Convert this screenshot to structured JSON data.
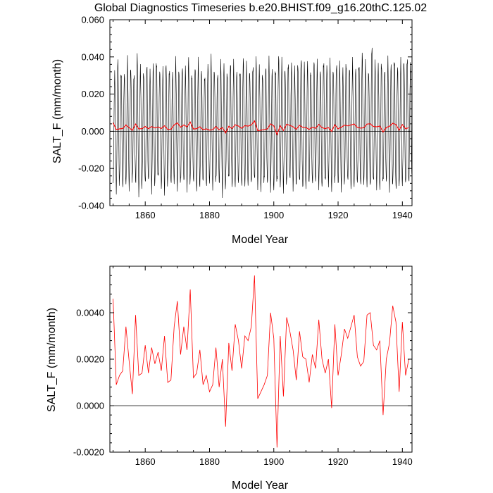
{
  "title": "Global Diagnostics Timeseries b.e20.BHIST.f09_g16.20thC.125.02",
  "chart_data": [
    {
      "type": "line",
      "xlabel": "Model Year",
      "ylabel": "SALT_F (mm/month)",
      "xlim": [
        1849,
        1943
      ],
      "ylim": [
        -0.04,
        0.06
      ],
      "x_ticks": [
        1860,
        1880,
        1900,
        1920,
        1940
      ],
      "x_tick_labels": [
        "1860",
        "1880",
        "1900",
        "1920",
        "1940"
      ],
      "y_ticks": [
        -0.04,
        -0.02,
        0.0,
        0.02,
        0.04,
        0.06
      ],
      "y_tick_labels": [
        "-0.040",
        "-0.020",
        "0.000",
        "0.020",
        "0.040",
        "0.060"
      ],
      "reference_line_y": 0.0,
      "monthly": {
        "color": "#000000",
        "start_year": 1850,
        "amplitude_max": [
          0.033,
          0.042,
          0.036,
          0.034,
          0.041,
          0.038,
          0.035,
          0.044,
          0.037,
          0.036,
          0.04,
          0.034,
          0.039,
          0.043,
          0.036,
          0.035,
          0.04,
          0.038,
          0.034,
          0.041,
          0.037,
          0.039,
          0.036,
          0.042,
          0.035,
          0.038,
          0.04,
          0.036,
          0.034,
          0.039,
          0.042,
          0.037,
          0.035,
          0.04,
          0.038,
          0.036,
          0.041,
          0.039,
          0.035,
          0.037,
          0.043,
          0.038,
          0.036,
          0.04,
          0.042,
          0.037,
          0.035,
          0.039,
          0.041,
          0.036,
          0.038,
          0.045,
          0.04,
          0.037,
          0.042,
          0.039,
          0.036,
          0.041,
          0.044,
          0.038,
          0.04,
          0.037,
          0.042,
          0.039,
          0.036,
          0.043,
          0.038,
          0.04,
          0.037,
          0.041,
          0.039,
          0.036,
          0.042,
          0.038,
          0.04,
          0.037,
          0.041,
          0.046,
          0.039,
          0.036,
          0.052,
          0.04,
          0.038,
          0.042,
          0.037,
          0.041,
          0.039,
          0.044,
          0.038,
          0.04,
          0.042,
          0.045,
          0.039
        ],
        "amplitude_min": [
          -0.031,
          -0.034,
          -0.029,
          -0.035,
          -0.03,
          -0.033,
          -0.028,
          -0.032,
          -0.036,
          -0.03,
          -0.033,
          -0.029,
          -0.034,
          -0.031,
          -0.028,
          -0.033,
          -0.035,
          -0.03,
          -0.032,
          -0.029,
          -0.034,
          -0.031,
          -0.03,
          -0.033,
          -0.028,
          -0.032,
          -0.035,
          -0.03,
          -0.031,
          -0.034,
          -0.029,
          -0.033,
          -0.03,
          -0.032,
          -0.036,
          -0.031,
          -0.029,
          -0.033,
          -0.03,
          -0.032,
          -0.034,
          -0.031,
          -0.03,
          -0.033,
          -0.029,
          -0.032,
          -0.035,
          -0.03,
          -0.031,
          -0.033,
          -0.036,
          -0.03,
          -0.032,
          -0.034,
          -0.031,
          -0.029,
          -0.033,
          -0.03,
          -0.032,
          -0.034,
          -0.031,
          -0.03,
          -0.033,
          -0.029,
          -0.032,
          -0.035,
          -0.03,
          -0.031,
          -0.034,
          -0.03,
          -0.032,
          -0.033,
          -0.029,
          -0.031,
          -0.034,
          -0.03,
          -0.032,
          -0.033,
          -0.03,
          -0.031,
          -0.035,
          -0.03,
          -0.032,
          -0.034,
          -0.031,
          -0.03,
          -0.033,
          -0.032,
          -0.036,
          -0.031,
          -0.03,
          -0.033,
          -0.031
        ]
      },
      "series": [
        {
          "color": "#ff0000",
          "x": [
            1850,
            1851,
            1852,
            1853,
            1854,
            1855,
            1856,
            1857,
            1858,
            1859,
            1860,
            1861,
            1862,
            1863,
            1864,
            1865,
            1866,
            1867,
            1868,
            1869,
            1870,
            1871,
            1872,
            1873,
            1874,
            1875,
            1876,
            1877,
            1878,
            1879,
            1880,
            1881,
            1882,
            1883,
            1884,
            1885,
            1886,
            1887,
            1888,
            1889,
            1890,
            1891,
            1892,
            1893,
            1894,
            1895,
            1896,
            1897,
            1898,
            1899,
            1900,
            1901,
            1902,
            1903,
            1904,
            1905,
            1906,
            1907,
            1908,
            1909,
            1910,
            1911,
            1912,
            1913,
            1914,
            1915,
            1916,
            1917,
            1918,
            1919,
            1920,
            1921,
            1922,
            1923,
            1924,
            1925,
            1926,
            1927,
            1928,
            1929,
            1930,
            1931,
            1932,
            1933,
            1934,
            1935,
            1936,
            1937,
            1938,
            1939,
            1940,
            1941,
            1942
          ],
          "values": [
            0.0046,
            0.0009,
            0.0013,
            0.0015,
            0.0034,
            0.0019,
            0.0005,
            0.0039,
            0.0013,
            0.0014,
            0.0026,
            0.0014,
            0.0025,
            0.0018,
            0.0023,
            0.0015,
            0.003,
            0.001,
            0.0011,
            0.0034,
            0.0045,
            0.0022,
            0.0034,
            0.0024,
            0.005,
            0.0012,
            0.0014,
            0.0024,
            0.0009,
            0.0013,
            0.0006,
            0.0009,
            0.0025,
            0.0008,
            0.002,
            -0.0009,
            0.0027,
            0.0015,
            0.0035,
            0.0028,
            0.0016,
            0.003,
            0.0028,
            0.0034,
            0.0056,
            0.0003,
            0.0006,
            0.0009,
            0.0013,
            0.004,
            0.0029,
            -0.0018,
            0.003,
            0.0004,
            0.0038,
            0.0032,
            0.0024,
            0.0011,
            0.0032,
            0.0021,
            0.002,
            0.001,
            0.0022,
            0.0016,
            0.0037,
            0.002,
            0.0014,
            0.002,
            -0.0001,
            0.0035,
            0.0013,
            0.0022,
            0.0033,
            0.0029,
            0.0034,
            0.0039,
            0.0021,
            0.0017,
            0.0019,
            0.0039,
            0.004,
            0.0026,
            0.0024,
            0.0028,
            -0.0004,
            0.002,
            0.0027,
            0.0043,
            0.0036,
            0.0006,
            0.0036,
            0.0013,
            0.002
          ]
        }
      ]
    },
    {
      "type": "line",
      "xlabel": "Model Year",
      "ylabel": "SALT_F (mm/month)",
      "xlim": [
        1849,
        1943
      ],
      "ylim": [
        -0.002,
        0.006
      ],
      "x_ticks": [
        1860,
        1880,
        1900,
        1920,
        1940
      ],
      "x_tick_labels": [
        "1860",
        "1880",
        "1900",
        "1920",
        "1940"
      ],
      "y_ticks": [
        -0.002,
        0.0,
        0.002,
        0.004
      ],
      "y_tick_labels": [
        "-0.0020",
        "0.0000",
        "0.0020",
        "0.0040"
      ],
      "reference_line_y": 0.0,
      "series": [
        {
          "color": "#ff0000",
          "x": [
            1850,
            1851,
            1852,
            1853,
            1854,
            1855,
            1856,
            1857,
            1858,
            1859,
            1860,
            1861,
            1862,
            1863,
            1864,
            1865,
            1866,
            1867,
            1868,
            1869,
            1870,
            1871,
            1872,
            1873,
            1874,
            1875,
            1876,
            1877,
            1878,
            1879,
            1880,
            1881,
            1882,
            1883,
            1884,
            1885,
            1886,
            1887,
            1888,
            1889,
            1890,
            1891,
            1892,
            1893,
            1894,
            1895,
            1896,
            1897,
            1898,
            1899,
            1900,
            1901,
            1902,
            1903,
            1904,
            1905,
            1906,
            1907,
            1908,
            1909,
            1910,
            1911,
            1912,
            1913,
            1914,
            1915,
            1916,
            1917,
            1918,
            1919,
            1920,
            1921,
            1922,
            1923,
            1924,
            1925,
            1926,
            1927,
            1928,
            1929,
            1930,
            1931,
            1932,
            1933,
            1934,
            1935,
            1936,
            1937,
            1938,
            1939,
            1940,
            1941,
            1942
          ],
          "values": [
            0.0046,
            0.0009,
            0.0013,
            0.0015,
            0.0034,
            0.0019,
            0.0005,
            0.0039,
            0.0013,
            0.0014,
            0.0026,
            0.0014,
            0.0025,
            0.0018,
            0.0023,
            0.0015,
            0.003,
            0.001,
            0.0011,
            0.0034,
            0.0045,
            0.0022,
            0.0034,
            0.0024,
            0.005,
            0.0012,
            0.0014,
            0.0024,
            0.0009,
            0.0013,
            0.0006,
            0.0009,
            0.0025,
            0.0008,
            0.002,
            -0.0009,
            0.0027,
            0.0015,
            0.0035,
            0.0028,
            0.0016,
            0.003,
            0.0028,
            0.0034,
            0.0056,
            0.0003,
            0.0006,
            0.0009,
            0.0013,
            0.004,
            0.0029,
            -0.0018,
            0.003,
            0.0004,
            0.0038,
            0.0032,
            0.0024,
            0.0011,
            0.0032,
            0.0021,
            0.002,
            0.001,
            0.0022,
            0.0016,
            0.0037,
            0.002,
            0.0014,
            0.002,
            -0.0001,
            0.0035,
            0.0013,
            0.0022,
            0.0033,
            0.0029,
            0.0034,
            0.0039,
            0.0021,
            0.0017,
            0.0019,
            0.0039,
            0.004,
            0.0026,
            0.0024,
            0.0028,
            -0.0004,
            0.002,
            0.0027,
            0.0043,
            0.0036,
            0.0006,
            0.0036,
            0.0013,
            0.002
          ]
        }
      ]
    }
  ]
}
